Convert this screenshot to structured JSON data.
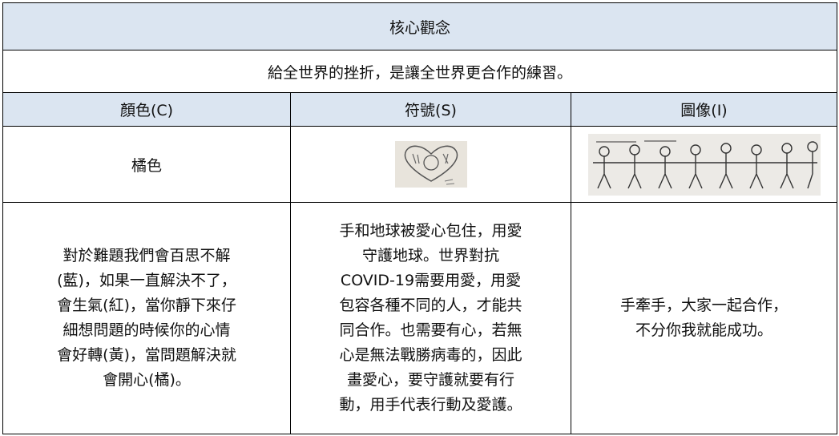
{
  "table": {
    "title": "核心觀念",
    "statement": "給全世界的挫折，是讓全世界更合作的練習。",
    "headers": [
      "顏色(C)",
      "符號(S)",
      "圖像(I)"
    ],
    "color_name": "橘色",
    "explanations": [
      [
        "對於難題我們會百思不解",
        "(藍)，如果一直解決不了，",
        "會生氣(紅)，當你靜下來仔",
        "細想問題的時候你的心情",
        "會好轉(黃)，當問題解決就",
        "會開心(橘)。"
      ],
      [
        "手和地球被愛心包住，用愛",
        "守護地球。世界對抗",
        "COVID-19需要用愛，用愛",
        "包容各種不同的人，才能共",
        "同合作。也需要有心，若無",
        "心是無法戰勝病毒的，因此",
        "畫愛心，要守護就要有行",
        "動，用手代表行動及愛護。"
      ],
      [
        "手牽手，大家一起合作，",
        "不分你我就能成功。"
      ]
    ]
  }
}
